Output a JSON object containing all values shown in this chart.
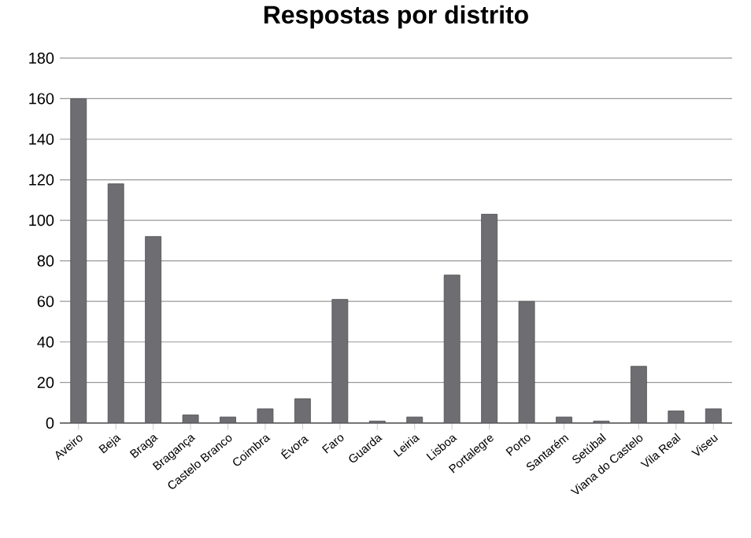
{
  "chart_data": {
    "type": "bar",
    "title": "Respostas por distrito",
    "categories": [
      "Aveiro",
      "Beja",
      "Braga",
      "Bragança",
      "Castelo Branco",
      "Coimbra",
      "Évora",
      "Faro",
      "Guarda",
      "Leiria",
      "Lisboa",
      "Portalegre",
      "Porto",
      "Santarém",
      "Setúbal",
      "Viana do Castelo",
      "Vila Real",
      "Viseu"
    ],
    "values": [
      160,
      118,
      92,
      4,
      3,
      7,
      12,
      61,
      1,
      3,
      73,
      103,
      60,
      3,
      1,
      28,
      6,
      7
    ],
    "color": "#6e6e72",
    "ylim": [
      0,
      180
    ],
    "yticks": [
      0,
      20,
      40,
      60,
      80,
      100,
      120,
      140,
      160,
      180
    ],
    "grid": "y"
  }
}
